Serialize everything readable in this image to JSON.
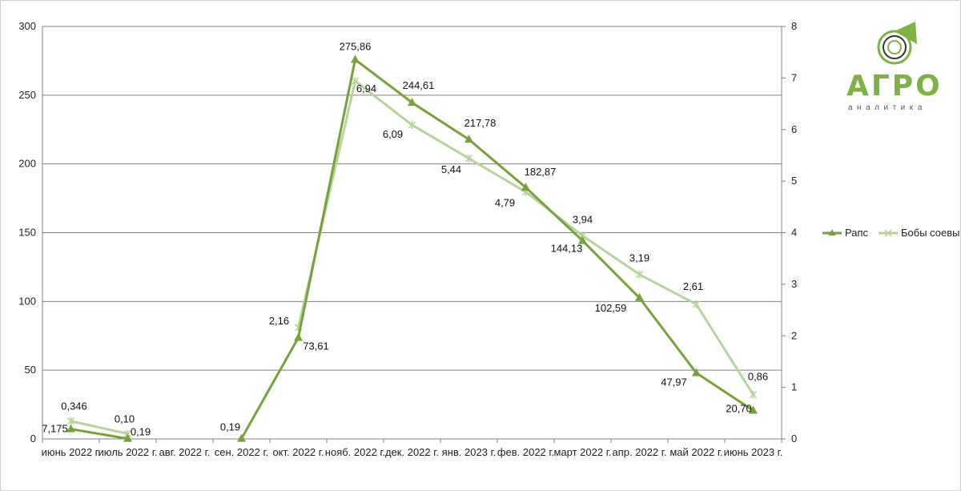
{
  "logo": {
    "word": "АГРО",
    "sub": "аналитика"
  },
  "colors": {
    "rapeseed": "#77a13a",
    "soy": "#b5d59a",
    "grid": "#808080",
    "axis": "#808080"
  },
  "chart_data": {
    "type": "line",
    "categories": [
      "июнь 2022 г.",
      "июль 2022 г.",
      "авг. 2022 г.",
      "сен. 2022 г.",
      "окт. 2022 г.",
      "нояб. 2022 г.",
      "дек. 2022 г.",
      "янв. 2023 г.",
      "фев. 2022 г.",
      "март 2022 г.",
      "апр. 2022 г.",
      "май 2022 г.",
      "июнь 2023 г."
    ],
    "y_left": {
      "min": 0,
      "max": 300,
      "ticks": [
        "0",
        "50",
        "100",
        "150",
        "200",
        "250",
        "300"
      ]
    },
    "y_right": {
      "min": 0,
      "max": 8,
      "ticks": [
        "0",
        "1",
        "2",
        "3",
        "4",
        "5",
        "6",
        "7",
        "8"
      ]
    },
    "grid": true,
    "legend_position": "right",
    "series": [
      {
        "name": "Рапс",
        "axis": "left",
        "marker": "triangle",
        "values": [
          7.175,
          0.19,
          null,
          0.19,
          73.61,
          275.86,
          244.61,
          217.78,
          182.87,
          144.13,
          102.59,
          47.97,
          20.7
        ],
        "labels": [
          "7,175",
          "0,19",
          "",
          "0,19",
          "73,61",
          "275,86",
          "244,61",
          "217,78",
          "182,87",
          "144,13",
          "102,59",
          "47,97",
          "20,70"
        ]
      },
      {
        "name": "Бобы соевые",
        "axis": "right",
        "marker": "star",
        "values": [
          0.346,
          0.1,
          null,
          null,
          2.16,
          6.94,
          6.09,
          5.44,
          4.79,
          3.94,
          3.19,
          2.61,
          0.86
        ],
        "labels": [
          "0,346",
          "0,10",
          "",
          "",
          "2,16",
          "6,94",
          "6,09",
          "5,44",
          "4,79",
          "3,94",
          "3,19",
          "2,61",
          "0,86"
        ]
      }
    ]
  }
}
